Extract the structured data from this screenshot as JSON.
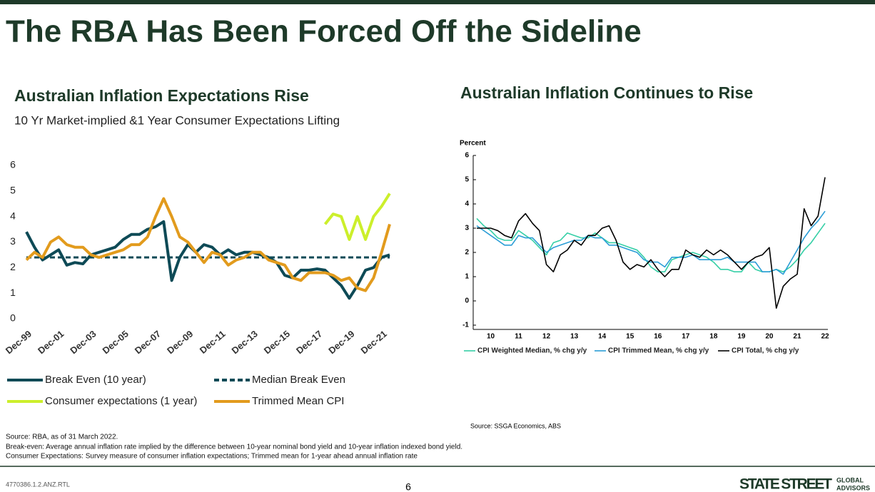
{
  "header": {
    "title": "The RBA Has Been Forced Off the Sideline"
  },
  "chart_data": [
    {
      "type": "line",
      "title": "Australian Inflation Expectations Rise",
      "subtitle": "10 Yr Market-implied &1 Year Consumer Expectations Lifting",
      "categories": [
        "Dec-99",
        null,
        null,
        null,
        "Dec-01",
        null,
        null,
        null,
        "Dec-03",
        null,
        null,
        null,
        "Dec-05",
        null,
        null,
        null,
        "Dec-07",
        null,
        null,
        null,
        "Dec-09",
        null,
        null,
        null,
        "Dec-11",
        null,
        null,
        null,
        "Dec-13",
        null,
        null,
        null,
        "Dec-15",
        null,
        null,
        null,
        "Dec-17",
        null,
        null,
        null,
        "Dec-19",
        null,
        null,
        null,
        "Dec-21",
        null
      ],
      "ylim": [
        0,
        6
      ],
      "yticks": [
        0,
        1,
        2,
        3,
        4,
        5,
        6
      ],
      "series": [
        {
          "name": "Break Even (10 year)",
          "color": "#0e4a56",
          "values": [
            3.4,
            2.8,
            2.3,
            2.5,
            2.7,
            2.1,
            2.2,
            2.15,
            2.5,
            2.6,
            2.7,
            2.8,
            3.1,
            3.3,
            3.3,
            3.5,
            3.6,
            3.8,
            1.5,
            2.4,
            2.9,
            2.6,
            2.9,
            2.8,
            2.5,
            2.7,
            2.5,
            2.6,
            2.6,
            2.5,
            2.4,
            2.2,
            1.7,
            1.6,
            1.9,
            1.9,
            1.95,
            1.9,
            1.6,
            1.3,
            0.8,
            1.3,
            1.9,
            2.0,
            2.4,
            2.5
          ]
        },
        {
          "name": "Median Break Even",
          "color": "#0e4a56",
          "dashed": true,
          "values": [
            2.4,
            2.4,
            2.4,
            2.4,
            2.4,
            2.4,
            2.4,
            2.4,
            2.4,
            2.4,
            2.4,
            2.4,
            2.4,
            2.4,
            2.4,
            2.4,
            2.4,
            2.4,
            2.4,
            2.4,
            2.4,
            2.4,
            2.4,
            2.4,
            2.4,
            2.4,
            2.4,
            2.4,
            2.4,
            2.4,
            2.4,
            2.4,
            2.4,
            2.4,
            2.4,
            2.4,
            2.4,
            2.4,
            2.4,
            2.4,
            2.4,
            2.4,
            2.4,
            2.4,
            2.4,
            2.4
          ]
        },
        {
          "name": "Consumer expectations (1 year)",
          "color": "#ccef2b",
          "values": [
            null,
            null,
            null,
            null,
            null,
            null,
            null,
            null,
            null,
            null,
            null,
            null,
            null,
            null,
            null,
            null,
            null,
            null,
            null,
            null,
            null,
            null,
            null,
            null,
            null,
            null,
            null,
            null,
            null,
            null,
            null,
            null,
            null,
            null,
            null,
            null,
            null,
            3.7,
            4.1,
            4.0,
            3.1,
            4.0,
            3.1,
            4.0,
            4.4,
            4.9
          ]
        },
        {
          "name": "Trimmed Mean CPI",
          "color": "#e29b1d",
          "values": [
            2.3,
            2.6,
            2.4,
            3.0,
            3.2,
            2.9,
            2.8,
            2.8,
            2.5,
            2.4,
            2.5,
            2.6,
            2.7,
            2.9,
            2.9,
            3.2,
            4.0,
            4.7,
            4.0,
            3.2,
            3.0,
            2.6,
            2.2,
            2.6,
            2.5,
            2.1,
            2.3,
            2.4,
            2.6,
            2.6,
            2.3,
            2.2,
            2.1,
            1.6,
            1.5,
            1.8,
            1.8,
            1.8,
            1.7,
            1.5,
            1.6,
            1.2,
            1.1,
            1.6,
            2.6,
            3.7
          ]
        }
      ],
      "source": "Source: RBA, as of 31 March 2022."
    },
    {
      "type": "line",
      "title": "Australian Inflation Continues to Rise",
      "y_label": "Percent",
      "categories": [
        null,
        null,
        "10",
        null,
        null,
        null,
        "11",
        null,
        null,
        null,
        "12",
        null,
        null,
        null,
        "13",
        null,
        null,
        null,
        "14",
        null,
        null,
        null,
        "15",
        null,
        null,
        null,
        "16",
        null,
        null,
        null,
        "17",
        null,
        null,
        null,
        "18",
        null,
        null,
        null,
        "19",
        null,
        null,
        null,
        "20",
        null,
        null,
        null,
        "21",
        null,
        null,
        null,
        "22"
      ],
      "ylim": [
        -1,
        6
      ],
      "yticks": [
        -1,
        0,
        1,
        2,
        3,
        4,
        5,
        6
      ],
      "series": [
        {
          "name": "CPI Weighted Median, % chg y/y",
          "color": "#35cfa6",
          "values": [
            3.4,
            3.1,
            2.9,
            2.6,
            2.5,
            2.5,
            2.9,
            2.7,
            2.5,
            2.2,
            1.9,
            2.4,
            2.5,
            2.8,
            2.7,
            2.6,
            2.6,
            2.8,
            2.6,
            2.4,
            2.4,
            2.3,
            2.2,
            2.1,
            1.8,
            1.4,
            1.2,
            1.2,
            1.7,
            1.8,
            1.9,
            2.0,
            1.9,
            1.8,
            1.6,
            1.3,
            1.3,
            1.2,
            1.2,
            1.6,
            1.3,
            1.2,
            1.2,
            1.3,
            1.2,
            1.4,
            1.7,
            2.1,
            2.4,
            2.8,
            3.2
          ]
        },
        {
          "name": "CPI Trimmed Mean, % chg y/y",
          "color": "#2a9dd6",
          "values": [
            3.1,
            2.9,
            2.7,
            2.5,
            2.3,
            2.3,
            2.7,
            2.6,
            2.6,
            2.3,
            2.0,
            2.2,
            2.3,
            2.4,
            2.5,
            2.5,
            2.7,
            2.6,
            2.6,
            2.3,
            2.3,
            2.2,
            2.1,
            2.0,
            1.7,
            1.6,
            1.6,
            1.4,
            1.8,
            1.8,
            1.8,
            1.9,
            1.7,
            1.7,
            1.7,
            1.7,
            1.8,
            1.6,
            1.6,
            1.6,
            1.6,
            1.2,
            1.2,
            1.3,
            1.1,
            1.6,
            2.1,
            2.6,
            3.0,
            3.3,
            3.7
          ]
        },
        {
          "name": "CPI Total, % chg y/y",
          "color": "#000000",
          "values": [
            3.0,
            3.0,
            3.0,
            2.9,
            2.7,
            2.6,
            3.3,
            3.6,
            3.2,
            2.9,
            1.5,
            1.2,
            1.9,
            2.1,
            2.5,
            2.3,
            2.7,
            2.7,
            3.0,
            3.1,
            2.5,
            1.6,
            1.3,
            1.5,
            1.4,
            1.7,
            1.3,
            1.0,
            1.3,
            1.3,
            2.1,
            1.9,
            1.8,
            2.1,
            1.9,
            2.1,
            1.9,
            1.6,
            1.3,
            1.6,
            1.8,
            1.9,
            2.2,
            -0.3,
            0.6,
            0.9,
            1.1,
            3.8,
            3.1,
            3.5,
            5.1
          ]
        }
      ],
      "source": "Source: SSGA Economics, ABS"
    }
  ],
  "notes": [
    "Break-even: Average annual inflation rate implied by the difference between 10-year nominal bond yield and 10-year inflation indexed bond yield.",
    "Consumer Expectations: Survey measure of consumer inflation expectations; Trimmed mean for 1-year ahead annual inflation rate"
  ],
  "footer": {
    "code": "4770386.1.2.ANZ.RTL",
    "page": "6",
    "brand": "STATE STREET",
    "brand_sub_1": "GLOBAL",
    "brand_sub_2": "ADVISORS"
  }
}
